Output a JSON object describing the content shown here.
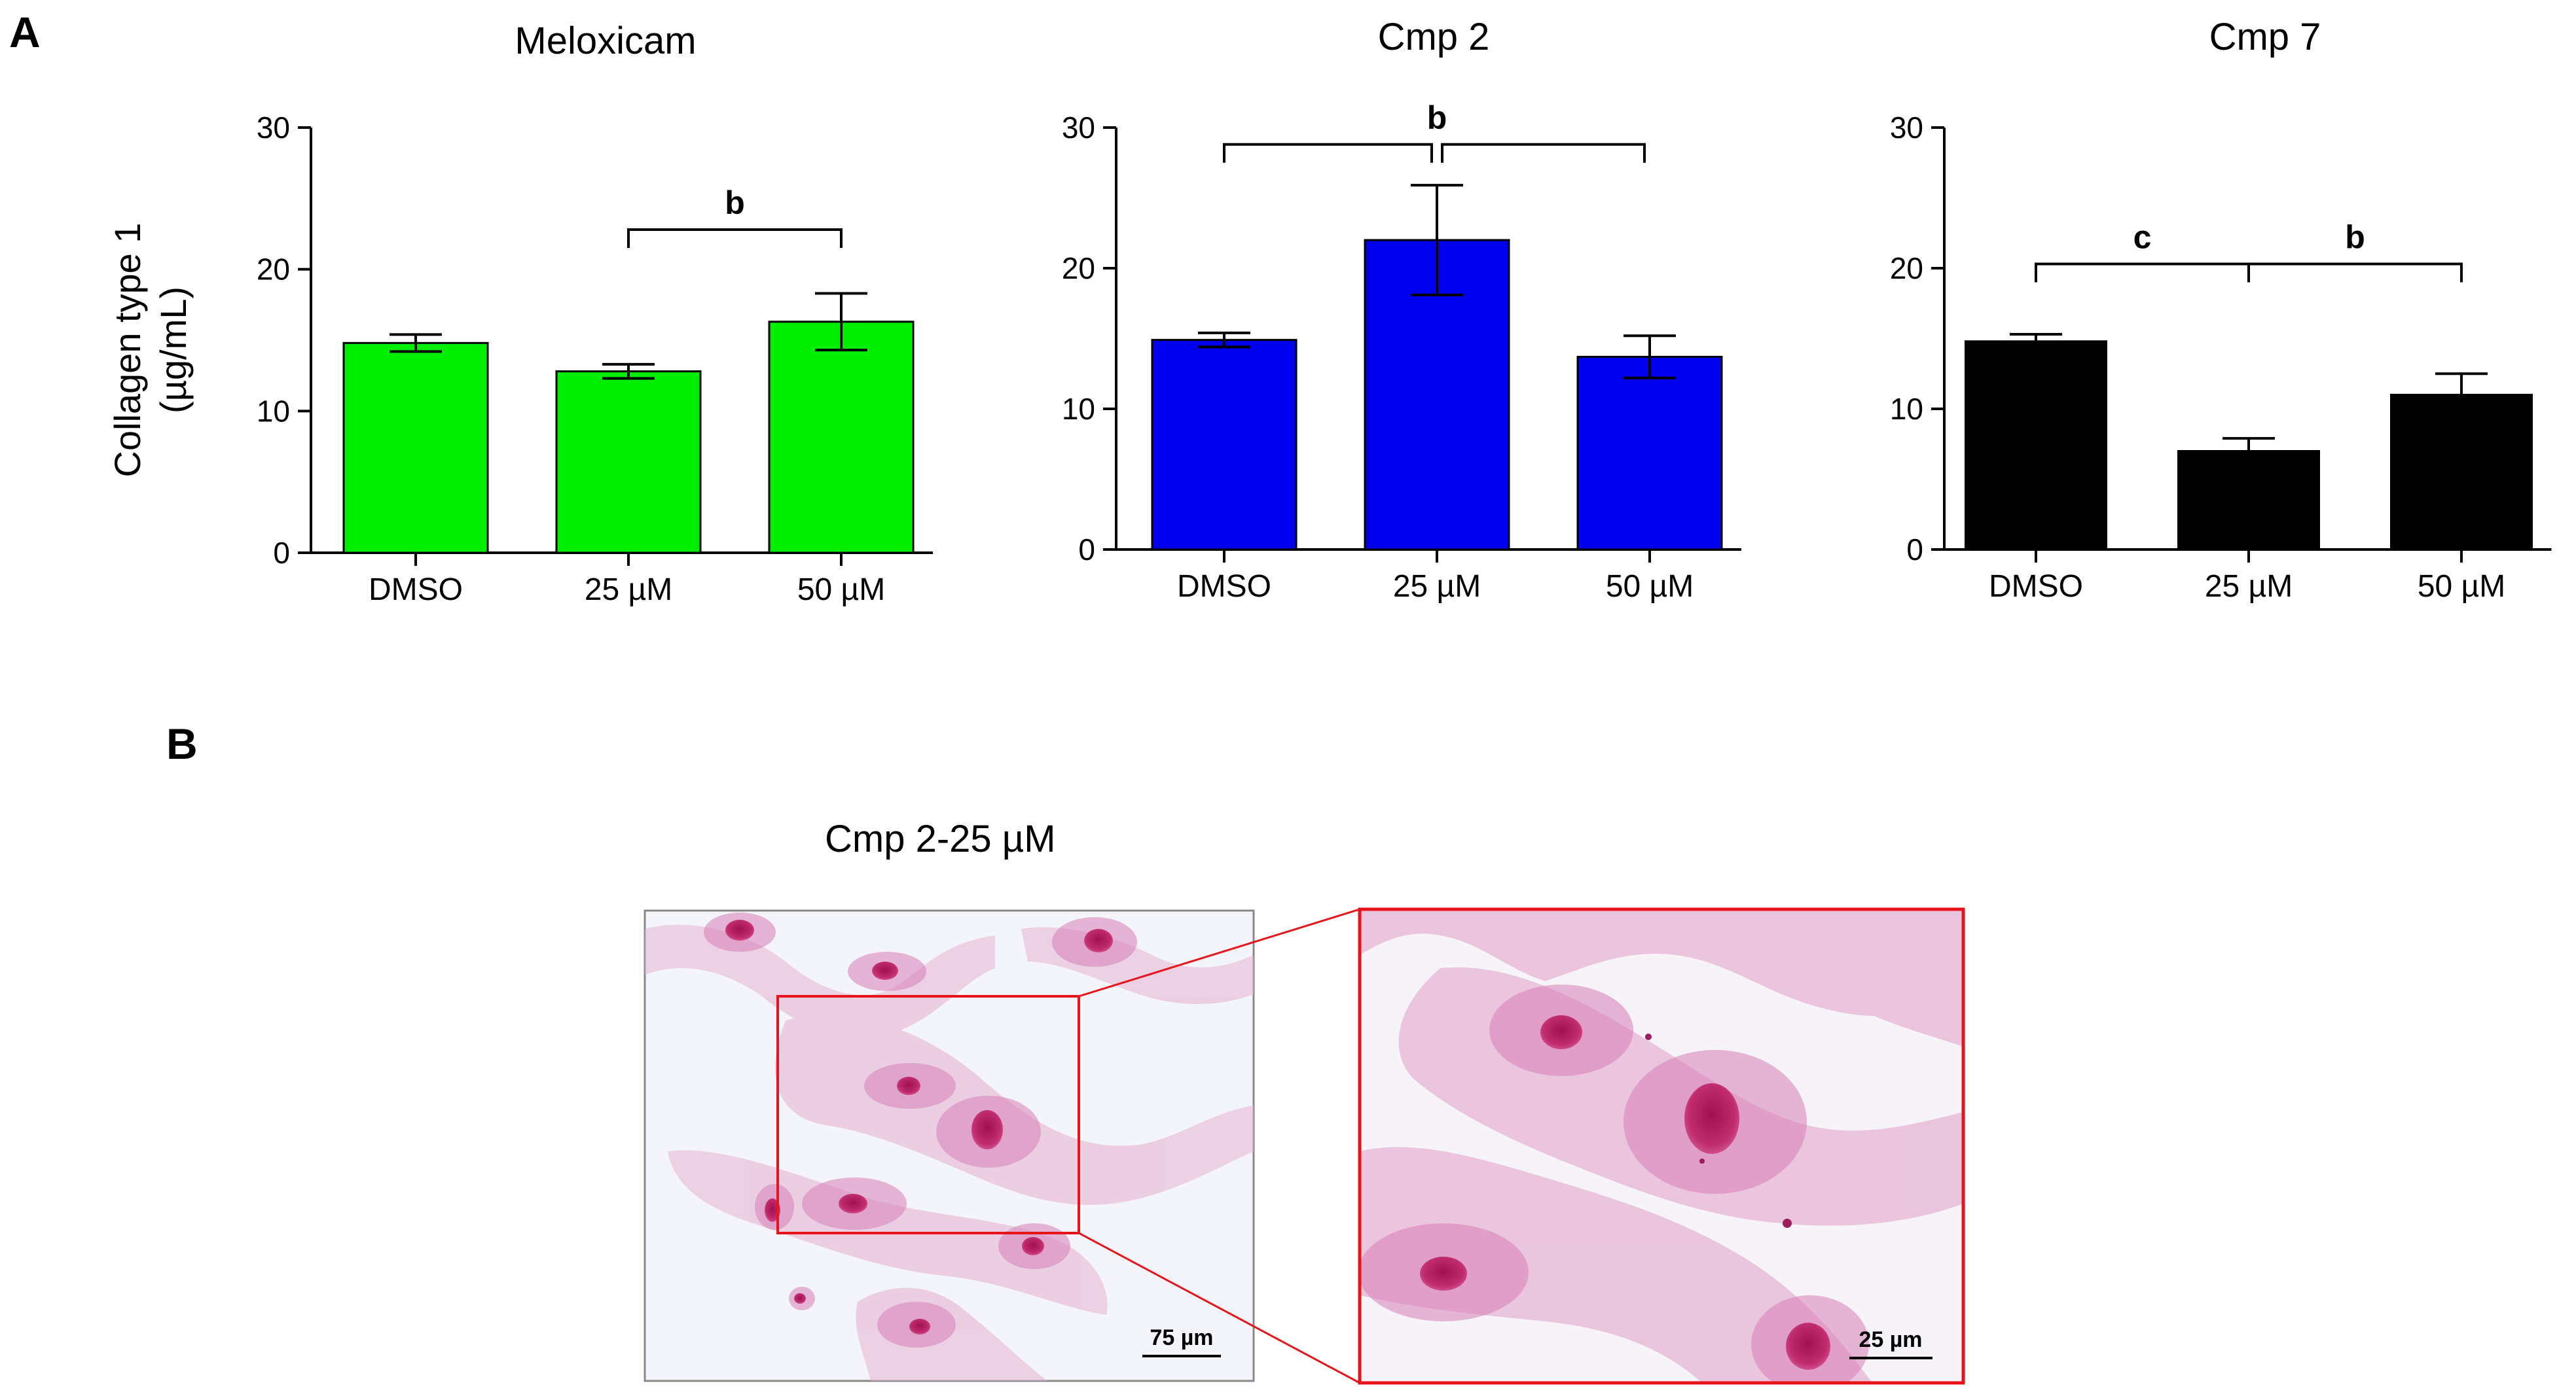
{
  "panel_a_label": "A",
  "panel_b_label": "B",
  "y_axis_label": "Collagen type 1",
  "y_axis_unit": "(µg/mL)",
  "chart_data": [
    {
      "type": "bar",
      "title": "Meloxicam",
      "categories": [
        "DMSO",
        "25 µM",
        "50 µM"
      ],
      "values": [
        14.8,
        12.8,
        16.3
      ],
      "errors": [
        0.6,
        0.5,
        2.0
      ],
      "ylim": [
        0,
        30
      ],
      "yticks": [
        0,
        10,
        20,
        30
      ],
      "ylabel": "Collagen type 1 (µg/mL)",
      "color": "#00ee00",
      "significance": [
        {
          "label": "b",
          "from": 1,
          "to": 2,
          "y": 22.8
        }
      ]
    },
    {
      "type": "bar",
      "title": "Cmp 2",
      "categories": [
        "DMSO",
        "25 µM",
        "50 µM"
      ],
      "values": [
        14.9,
        22.0,
        13.7
      ],
      "errors": [
        0.5,
        3.9,
        1.5
      ],
      "ylim": [
        0,
        30
      ],
      "yticks": [
        0,
        10,
        20,
        30
      ],
      "ylabel": "Collagen type 1 (µg/mL)",
      "color": "#0000ee",
      "significance": [
        {
          "label": "b",
          "from": 0,
          "to": 1,
          "y": 28.8
        },
        {
          "label": "",
          "from": 1,
          "to": 2,
          "y": 28.8
        }
      ]
    },
    {
      "type": "bar",
      "title": "Cmp 7",
      "categories": [
        "DMSO",
        "25 µM",
        "50 µM"
      ],
      "values": [
        14.8,
        7.0,
        11.0
      ],
      "errors": [
        0.5,
        0.9,
        1.5
      ],
      "ylim": [
        0,
        30
      ],
      "yticks": [
        0,
        10,
        20,
        30
      ],
      "ylabel": "Collagen type 1 (µg/mL)",
      "color": "#000000",
      "significance": [
        {
          "label": "c",
          "from": 0,
          "to": 1,
          "y": 20.3
        },
        {
          "label": "b",
          "from": 1,
          "to": 2,
          "y": 20.3
        }
      ]
    }
  ],
  "micrograph": {
    "title": "Cmp 2-25 µM",
    "left_scale_label": "75 µm",
    "right_scale_label": "25 µm",
    "frame_color": "#e8141b",
    "stain_color": "#d94f9e"
  }
}
